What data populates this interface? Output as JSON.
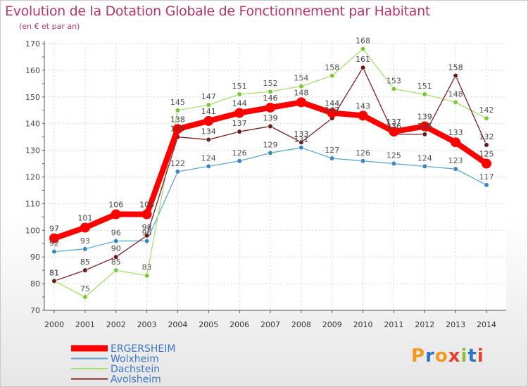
{
  "title": "Evolution de la Dotation Globale de Fonctionnement par Habitant",
  "subtitle": "(en € et par an)",
  "logo": {
    "text": "Proxiti",
    "colors": [
      "#f39a1e",
      "#2f74c0",
      "#f39a1e",
      "#e53f2f",
      "#8dbf3d",
      "#2f74c0",
      "#e53f2f"
    ]
  },
  "chart_data": {
    "type": "line",
    "title": "Evolution de la Dotation Globale de Fonctionnement par Habitant",
    "subtitle": "(en € et par an)",
    "xlabel": "",
    "ylabel": "",
    "categories": [
      "2000",
      "2001",
      "2002",
      "2003",
      "2004",
      "2005",
      "2006",
      "2007",
      "2008",
      "2009",
      "2010",
      "2011",
      "2012",
      "2013",
      "2014"
    ],
    "ylim": [
      70,
      170
    ],
    "yticks": [
      "70",
      "80",
      "90",
      "100",
      "110",
      "120",
      "130",
      "140",
      "150",
      "160",
      "170"
    ],
    "grid": true,
    "legend_position": "bottom-left",
    "series": [
      {
        "name": "ERGERSHEIM",
        "color": "#ff0000",
        "marker": "#ff0000",
        "values": [
          97,
          101,
          106,
          106,
          138,
          141,
          144,
          146,
          148,
          144,
          143,
          137,
          139,
          133,
          125
        ],
        "labels": [
          "97",
          "101",
          "106",
          "106",
          "138",
          "141",
          "144",
          "146",
          "148",
          "144",
          "143",
          "137",
          "139",
          "133",
          "125"
        ]
      },
      {
        "name": "Wolxheim",
        "color": "#5ea6d2",
        "marker": "#3a86c0",
        "values": [
          92,
          93,
          96,
          96,
          122,
          124,
          126,
          129,
          131,
          127,
          126,
          125,
          124,
          123,
          117
        ],
        "labels": [
          "92",
          "93",
          "96",
          "96",
          "122",
          "124",
          "126",
          "129",
          "131",
          "127",
          "126",
          "125",
          "124",
          "123",
          "117"
        ]
      },
      {
        "name": "Dachstein",
        "color": "#a6e06e",
        "marker": "#7cc63a",
        "values": [
          81,
          75,
          85,
          83,
          145,
          147,
          151,
          152,
          154,
          158,
          168,
          153,
          151,
          148,
          142
        ],
        "labels": [
          "81",
          "75",
          "85",
          "83",
          "145",
          "147",
          "151",
          "152",
          "154",
          "158",
          "168",
          "153",
          "151",
          "148",
          "142"
        ]
      },
      {
        "name": "Avolsheim",
        "color": "#7a2020",
        "marker": "#6a1a1a",
        "values": [
          81,
          85,
          90,
          98,
          135,
          134,
          137,
          139,
          133,
          142,
          161,
          136,
          136,
          158,
          132
        ],
        "labels": [
          "81",
          "85",
          "90",
          "98",
          "135",
          "134",
          "137",
          "139",
          "133",
          "142",
          "161",
          "136",
          "136",
          "158",
          "132"
        ]
      }
    ]
  }
}
